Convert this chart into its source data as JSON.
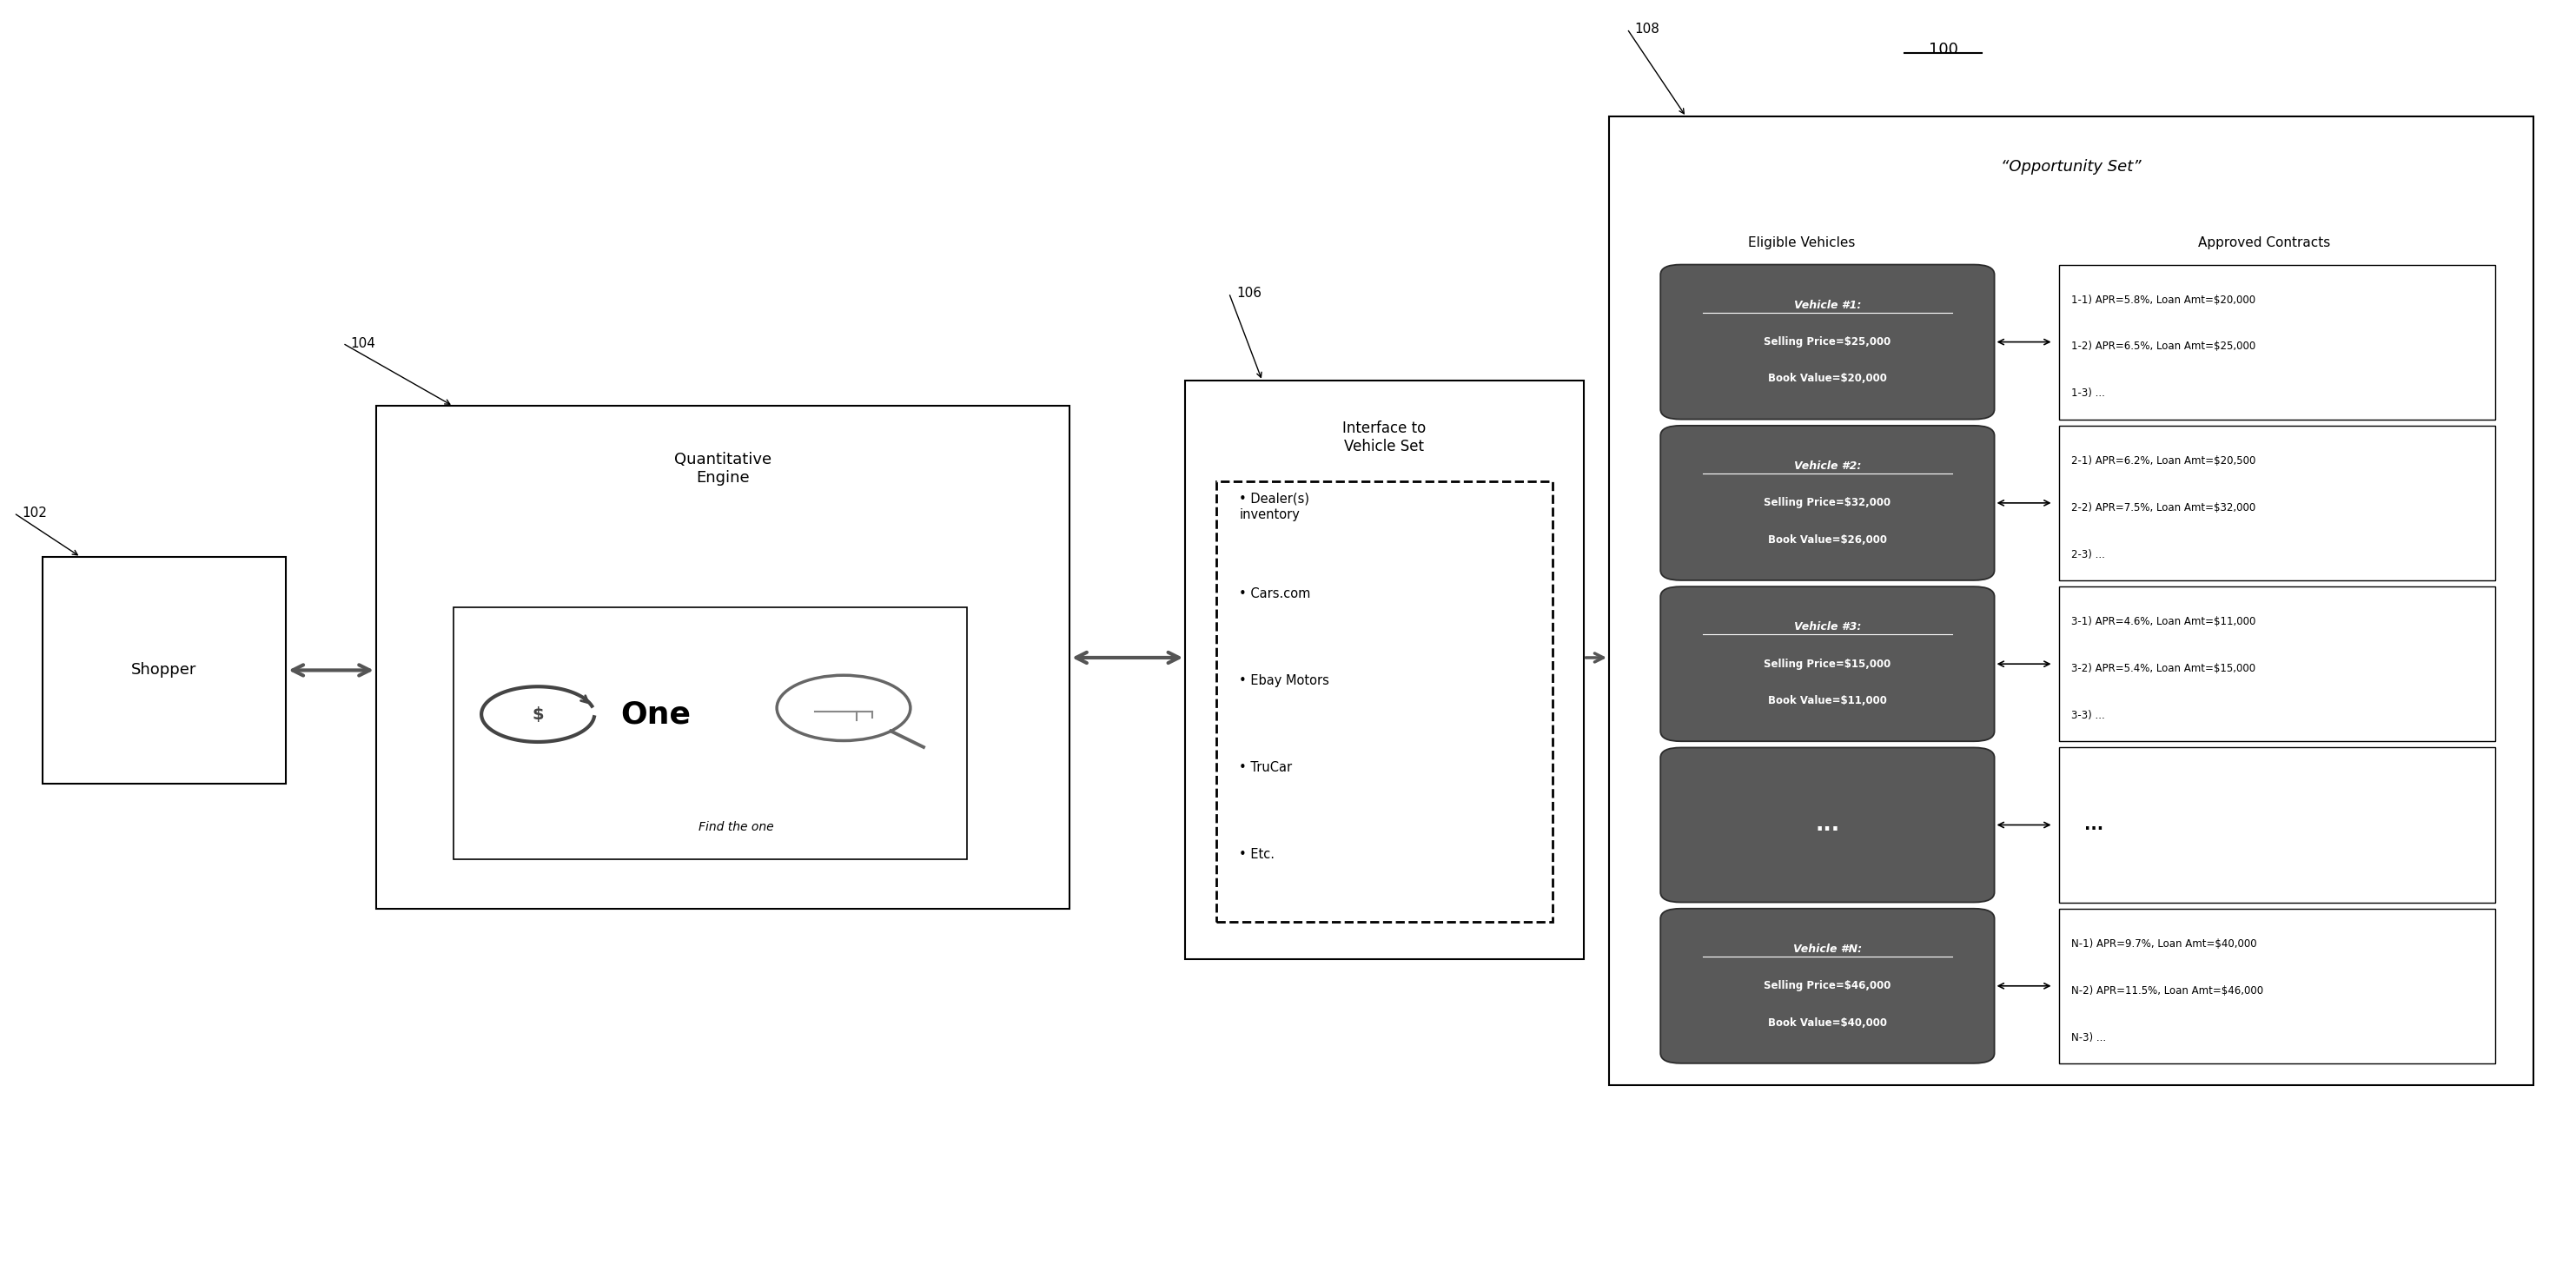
{
  "fig_width": 29.65,
  "fig_height": 14.56,
  "bg_color": "#ffffff",
  "fig_number": "100",
  "label_102": "102",
  "label_104": "104",
  "label_106": "106",
  "label_108": "108",
  "shopper_text": "Shopper",
  "quant_engine_title": "Quantitative\nEngine",
  "find_the_one": "Find the one",
  "interface_title": "Interface to\nVehicle Set",
  "interface_items": [
    "Dealer(s)\ninventory",
    "Cars.com",
    "Ebay Motors",
    "TruCar",
    "Etc."
  ],
  "opportunity_set_title": "“Opportunity Set”",
  "eligible_vehicles_title": "Eligible Vehicles",
  "approved_contracts_title": "Approved Contracts",
  "vehicles": [
    {
      "title": "Vehicle #1:",
      "line2": "Selling Price=$25,000",
      "line3": "Book Value=$20,000",
      "contracts": [
        "1-1) APR=5.8%, Loan Amt=$20,000",
        "1-2) APR=6.5%, Loan Amt=$25,000",
        "1-3) ..."
      ]
    },
    {
      "title": "Vehicle #2:",
      "line2": "Selling Price=$32,000",
      "line3": "Book Value=$26,000",
      "contracts": [
        "2-1) APR=6.2%, Loan Amt=$20,500",
        "2-2) APR=7.5%, Loan Amt=$32,000",
        "2-3) ..."
      ]
    },
    {
      "title": "Vehicle #3:",
      "line2": "Selling Price=$15,000",
      "line3": "Book Value=$11,000",
      "contracts": [
        "3-1) APR=4.6%, Loan Amt=$11,000",
        "3-2) APR=5.4%, Loan Amt=$15,000",
        "3-3) ..."
      ]
    },
    {
      "title": "...",
      "line2": "",
      "line3": "",
      "contracts": [
        "..."
      ]
    },
    {
      "title": "Vehicle #N:",
      "line2": "Selling Price=$46,000",
      "line3": "Book Value=$40,000",
      "contracts": [
        "N-1) APR=9.7%, Loan Amt=$40,000",
        "N-2) APR=11.5%, Loan Amt=$46,000",
        "N-3) ..."
      ]
    }
  ],
  "dark_box_color": "#595959",
  "dark_box_text_color": "#ffffff",
  "text_color": "#000000",
  "arrow_color": "#555555"
}
